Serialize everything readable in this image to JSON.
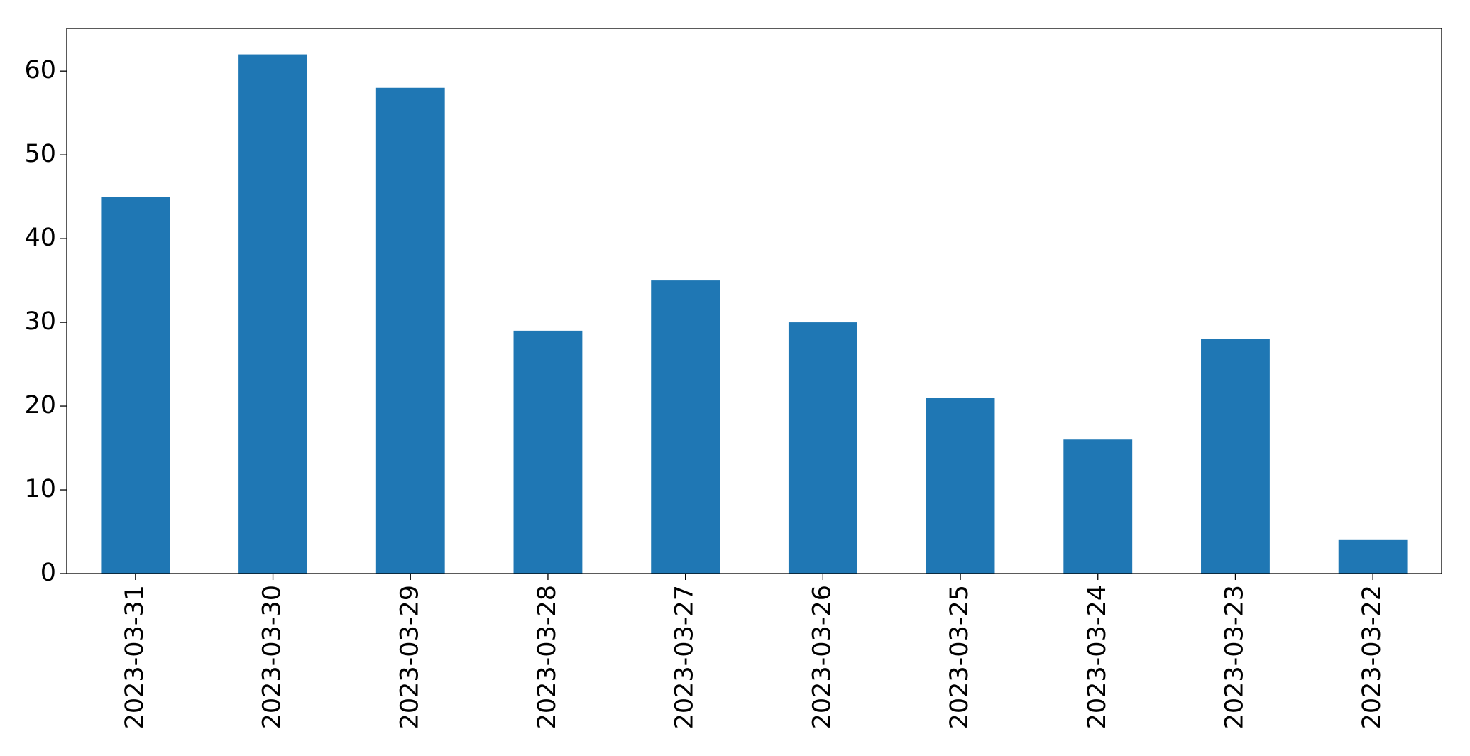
{
  "chart_data": {
    "type": "bar",
    "categories": [
      "2023-03-31",
      "2023-03-30",
      "2023-03-29",
      "2023-03-28",
      "2023-03-27",
      "2023-03-26",
      "2023-03-25",
      "2023-03-24",
      "2023-03-23",
      "2023-03-22"
    ],
    "values": [
      45,
      62,
      58,
      29,
      35,
      30,
      21,
      16,
      28,
      4
    ],
    "color": "#1f77b4",
    "ylim": [
      0,
      65.1
    ],
    "yticks": [
      0,
      10,
      20,
      30,
      40,
      50,
      60
    ],
    "grid": false
  }
}
